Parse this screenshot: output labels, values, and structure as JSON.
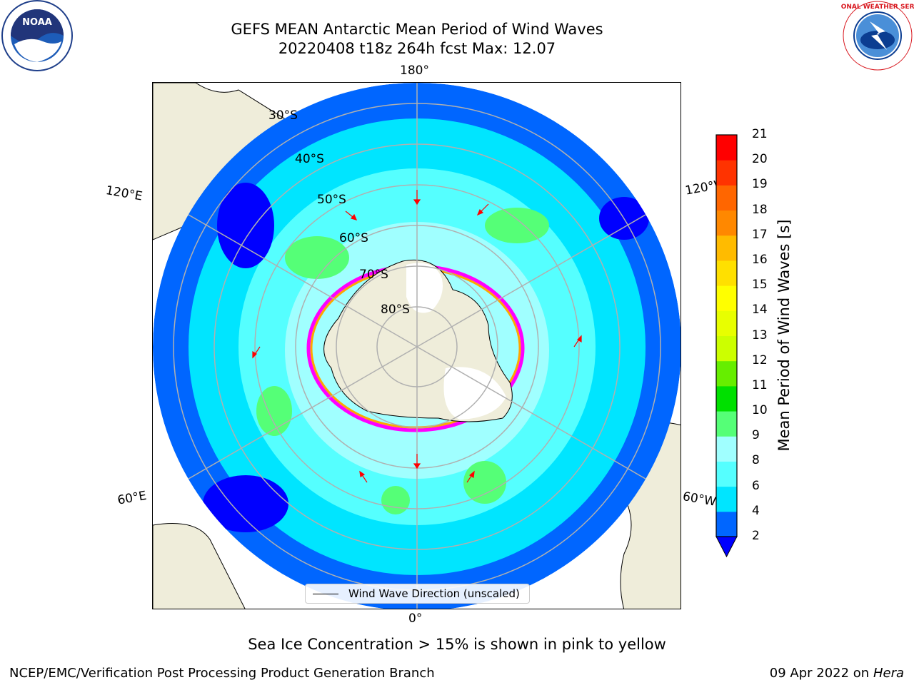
{
  "title": {
    "line1": "GEFS MEAN Antarctic Mean Period of Wind Waves",
    "line2": "20220408 t18z 264h fcst   Max: 12.07"
  },
  "map": {
    "longitude_labels": [
      "180°",
      "120°E",
      "120°W",
      "60°E",
      "60°W",
      "0°"
    ],
    "latitude_labels": [
      "30°S",
      "40°S",
      "50°S",
      "60°S",
      "70°S",
      "80°S"
    ],
    "legend_label": "Wind Wave Direction (unscaled)",
    "ocean_colors": {
      "lt2": "#0000ff",
      "2_4": "#0066ff",
      "4_6": "#00e5ff",
      "6_8": "#55ffff",
      "8_9": "#a0ffff",
      "9_10": "#55ff77"
    },
    "land_color": "#efedda",
    "ice_colors": [
      "#ff00ff",
      "#ffa500",
      "#ffff00"
    ]
  },
  "colorbar": {
    "title": "Mean Period of Wind Waves [s]",
    "ticks": [
      "2",
      "4",
      "6",
      "8",
      "9",
      "10",
      "11",
      "12",
      "13",
      "14",
      "15",
      "16",
      "17",
      "18",
      "19",
      "20",
      "21"
    ],
    "colors": [
      "#0066ff",
      "#00e5ff",
      "#55ffff",
      "#a0ffff",
      "#55ff77",
      "#00e000",
      "#66ee00",
      "#ccff00",
      "#e8ff00",
      "#ffff00",
      "#ffe000",
      "#ffbb00",
      "#ff8800",
      "#ff6600",
      "#ff3300",
      "#ff0000"
    ],
    "extend_color": "#0000ff"
  },
  "logos": {
    "noaa_text": "NOAA",
    "nws_text": "NATIONAL WEATHER SERVICE"
  },
  "caption": "Sea Ice Concentration > 15% is shown in pink to yellow",
  "credit_left": "NCEP/EMC/Verification Post Processing Product Generation Branch",
  "credit_right_date": "09 Apr 2022 on ",
  "credit_right_host": "Hera"
}
